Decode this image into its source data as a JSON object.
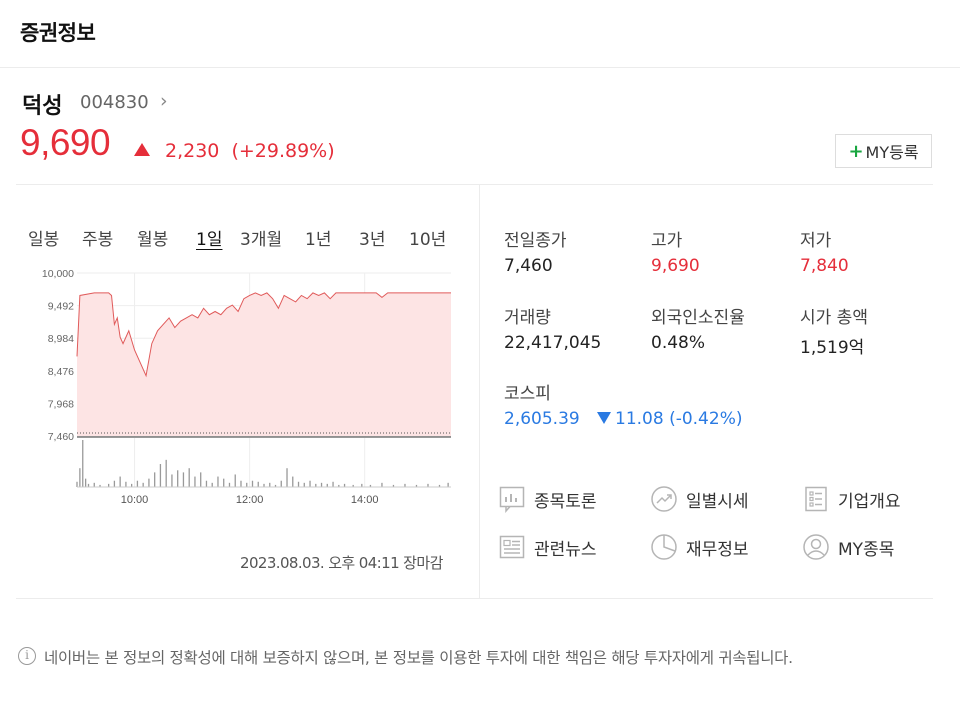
{
  "header": {
    "title": "증권정보"
  },
  "stock": {
    "name": "덕성",
    "code": "004830",
    "code_chevron": "›",
    "price": "9,690",
    "change": "2,230",
    "change_pct": "(+29.89%)",
    "my_button": "MY등록",
    "my_button_plus": "+"
  },
  "tabs": [
    "일봉",
    "주봉",
    "월봉",
    "1일",
    "3개월",
    "1년",
    "3년",
    "10년"
  ],
  "active_tab": "1일",
  "chart_data": {
    "type": "area",
    "y_ticks": [
      "10,000",
      "9,492",
      "8,984",
      "8,476",
      "7,968",
      "7,460"
    ],
    "ylim": [
      7460,
      10000
    ],
    "x_ticks": [
      "10:00",
      "12:00",
      "14:00"
    ],
    "base_line": 7460,
    "fill_color": "#fde4e4",
    "line_color": "#e05a5a",
    "price_series": [
      [
        9.0,
        8700
      ],
      [
        9.05,
        9650
      ],
      [
        9.3,
        9690
      ],
      [
        9.55,
        9690
      ],
      [
        9.6,
        9650
      ],
      [
        9.65,
        9200
      ],
      [
        9.7,
        9300
      ],
      [
        9.75,
        9000
      ],
      [
        9.8,
        8900
      ],
      [
        9.9,
        9100
      ],
      [
        10.0,
        8800
      ],
      [
        10.1,
        8600
      ],
      [
        10.2,
        8400
      ],
      [
        10.3,
        8900
      ],
      [
        10.4,
        9100
      ],
      [
        10.5,
        9200
      ],
      [
        10.6,
        9300
      ],
      [
        10.7,
        9150
      ],
      [
        10.8,
        9250
      ],
      [
        10.9,
        9300
      ],
      [
        11.0,
        9350
      ],
      [
        11.1,
        9300
      ],
      [
        11.2,
        9450
      ],
      [
        11.3,
        9350
      ],
      [
        11.4,
        9400
      ],
      [
        11.5,
        9350
      ],
      [
        11.6,
        9450
      ],
      [
        11.7,
        9500
      ],
      [
        11.8,
        9400
      ],
      [
        11.9,
        9600
      ],
      [
        12.0,
        9650
      ],
      [
        12.1,
        9690
      ],
      [
        12.2,
        9650
      ],
      [
        12.3,
        9690
      ],
      [
        12.4,
        9600
      ],
      [
        12.5,
        9450
      ],
      [
        12.6,
        9650
      ],
      [
        12.7,
        9600
      ],
      [
        12.8,
        9550
      ],
      [
        12.9,
        9650
      ],
      [
        13.0,
        9600
      ],
      [
        13.1,
        9690
      ],
      [
        13.2,
        9650
      ],
      [
        13.3,
        9690
      ],
      [
        13.4,
        9600
      ],
      [
        13.5,
        9690
      ],
      [
        13.6,
        9690
      ],
      [
        13.8,
        9690
      ],
      [
        14.0,
        9690
      ],
      [
        14.2,
        9690
      ],
      [
        14.3,
        9620
      ],
      [
        14.4,
        9690
      ],
      [
        14.8,
        9690
      ],
      [
        15.2,
        9690
      ],
      [
        15.5,
        9690
      ],
      [
        15.5,
        9690
      ]
    ],
    "volume_series": [
      [
        9.0,
        5
      ],
      [
        9.05,
        18
      ],
      [
        9.1,
        45
      ],
      [
        9.15,
        8
      ],
      [
        9.2,
        3
      ],
      [
        9.3,
        4
      ],
      [
        9.4,
        2
      ],
      [
        9.55,
        3
      ],
      [
        9.65,
        6
      ],
      [
        9.75,
        10
      ],
      [
        9.85,
        5
      ],
      [
        9.95,
        3
      ],
      [
        10.05,
        6
      ],
      [
        10.15,
        4
      ],
      [
        10.25,
        8
      ],
      [
        10.35,
        14
      ],
      [
        10.45,
        22
      ],
      [
        10.55,
        26
      ],
      [
        10.65,
        12
      ],
      [
        10.75,
        16
      ],
      [
        10.85,
        14
      ],
      [
        10.95,
        18
      ],
      [
        11.05,
        10
      ],
      [
        11.15,
        14
      ],
      [
        11.25,
        6
      ],
      [
        11.35,
        4
      ],
      [
        11.45,
        10
      ],
      [
        11.55,
        8
      ],
      [
        11.65,
        4
      ],
      [
        11.75,
        12
      ],
      [
        11.85,
        6
      ],
      [
        11.95,
        4
      ],
      [
        12.05,
        6
      ],
      [
        12.15,
        5
      ],
      [
        12.25,
        3
      ],
      [
        12.35,
        4
      ],
      [
        12.45,
        2
      ],
      [
        12.55,
        6
      ],
      [
        12.65,
        18
      ],
      [
        12.75,
        10
      ],
      [
        12.85,
        5
      ],
      [
        12.95,
        4
      ],
      [
        13.05,
        6
      ],
      [
        13.15,
        3
      ],
      [
        13.25,
        4
      ],
      [
        13.35,
        3
      ],
      [
        13.45,
        5
      ],
      [
        13.55,
        2
      ],
      [
        13.65,
        3
      ],
      [
        13.8,
        2
      ],
      [
        13.95,
        3
      ],
      [
        14.1,
        2
      ],
      [
        14.3,
        4
      ],
      [
        14.5,
        2
      ],
      [
        14.7,
        3
      ],
      [
        14.9,
        2
      ],
      [
        15.1,
        3
      ],
      [
        15.3,
        2
      ],
      [
        15.45,
        4
      ]
    ],
    "x_range": [
      9.0,
      15.5
    ]
  },
  "timestamp": "2023.08.03. 오후 04:11 장마감",
  "info": {
    "prev_close_label": "전일종가",
    "prev_close": "7,460",
    "high_label": "고가",
    "high": "9,690",
    "low_label": "저가",
    "low": "7,840",
    "volume_label": "거래량",
    "volume": "22,417,045",
    "foreign_label": "외국인소진율",
    "foreign": "0.48%",
    "mcap_label": "시가 총액",
    "mcap": "1,519억",
    "index_label": "코스피",
    "index_value": "2,605.39",
    "index_change": "11.08 (-0.42%)"
  },
  "menu": [
    {
      "icon": "chart-bar-icon",
      "label": "종목토론"
    },
    {
      "icon": "trend-line-icon",
      "label": "일별시세"
    },
    {
      "icon": "list-icon",
      "label": "기업개요"
    },
    {
      "icon": "news-icon",
      "label": "관련뉴스"
    },
    {
      "icon": "pie-chart-icon",
      "label": "재무정보"
    },
    {
      "icon": "user-icon",
      "label": "MY종목"
    }
  ],
  "disclaimer_icon": "i",
  "disclaimer": "네이버는 본 정보의 정확성에 대해 보증하지 않으며, 본 정보를 이용한 투자에 대한 책임은 해당 투자자에게 귀속됩니다."
}
